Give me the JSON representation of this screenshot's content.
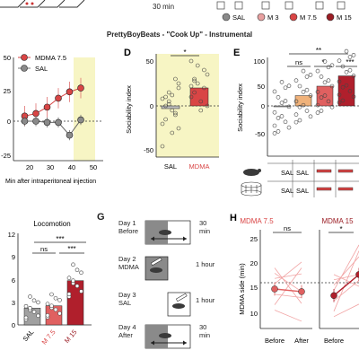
{
  "top": {
    "time_label": "30 min",
    "legend": [
      {
        "label": "SAL",
        "color": "#8a8a8a"
      },
      {
        "label": "M 3",
        "color": "#e8a0a0"
      },
      {
        "label": "M 7.5",
        "color": "#d94545"
      },
      {
        "label": "M 15",
        "color": "#9b1d24"
      }
    ]
  },
  "caption": "PrettyBoyBeats - \"Cook Up\" - Instrumental",
  "panels": {
    "C": {
      "legend": [
        "MDMA 7.5",
        "SAL"
      ],
      "xlabel": "Min after intraperitoneal injection",
      "yticks": [
        "50",
        "25",
        "0",
        "-25"
      ],
      "xticks": [
        "20",
        "30",
        "40",
        "50"
      ]
    },
    "D": {
      "letter": "D",
      "ylabel": "Sociability index",
      "xticks": [
        "SAL",
        "MDMA"
      ],
      "yticks": [
        "50",
        "0",
        "-50"
      ],
      "sig": "*"
    },
    "E": {
      "letter": "E",
      "ylabel": "Sociability index",
      "yticks": [
        "100",
        "50",
        "0",
        "-50"
      ],
      "sig_top": "**",
      "sig_ns": "ns",
      "sig_mid": "*",
      "sig_right": "***",
      "row1": [
        "SAL",
        "SAL",
        "",
        ""
      ],
      "row2": [
        "SAL",
        "SAL",
        "",
        ""
      ]
    },
    "F": {
      "title": "Locomotion",
      "yticks": [
        "12",
        "9",
        "6",
        "3",
        "0"
      ],
      "xticks": [
        "SAL",
        "M 7.5",
        "M 15"
      ],
      "sig_top": "***",
      "sig_ns": "ns",
      "sig_right": "***"
    },
    "G": {
      "letter": "G",
      "steps": [
        {
          "label": "Day 1\nBefore",
          "time": "30\nmin"
        },
        {
          "label": "Day 2\nMDMA",
          "time": "1 hour"
        },
        {
          "label": "Day 3\nSAL",
          "time": "1 hour"
        },
        {
          "label": "Day 4\nAfter",
          "time": "30\nmin"
        }
      ]
    },
    "H": {
      "letter": "H",
      "ylabel": "MDMA side (min)",
      "left_title": "MDMA 7.5",
      "right_title": "MDMA 15",
      "yticks": [
        "25",
        "20",
        "15",
        "10"
      ],
      "xticks": [
        "Before",
        "After"
      ],
      "left_sig": "ns",
      "right_sig": "*"
    }
  },
  "chart_data": [
    {
      "type": "line",
      "panel": "C",
      "x": [
        20,
        25,
        30,
        35,
        40,
        45
      ],
      "series": [
        {
          "name": "MDMA 7.5",
          "values": [
            4,
            6,
            11,
            18,
            23,
            26
          ]
        },
        {
          "name": "SAL",
          "values": [
            0,
            0,
            -1,
            -1,
            -11,
            1
          ]
        }
      ],
      "xlabel": "Min after intraperitoneal injection",
      "ylim": [
        -25,
        50
      ]
    },
    {
      "type": "bar",
      "panel": "D",
      "categories": [
        "SAL",
        "MDMA"
      ],
      "values": [
        -3,
        20
      ],
      "ylabel": "Sociability index",
      "ylim": [
        -60,
        60
      ]
    },
    {
      "type": "bar",
      "panel": "E",
      "categories": [
        "SAL",
        "M 3",
        "M 7.5",
        "M 15"
      ],
      "values": [
        -1,
        13,
        25,
        38
      ],
      "ylabel": "Sociability index",
      "ylim": [
        -75,
        100
      ]
    },
    {
      "type": "bar",
      "panel": "F",
      "title": "Locomotion",
      "categories": [
        "SAL",
        "M 7.5",
        "M 15"
      ],
      "values": [
        2.2,
        2.5,
        5.8
      ],
      "ylim": [
        0,
        12
      ]
    },
    {
      "type": "line",
      "panel": "H",
      "categories": [
        "Before",
        "After"
      ],
      "series": [
        {
          "name": "MDMA 7.5",
          "values": [
            16,
            15.6
          ]
        },
        {
          "name": "MDMA 15",
          "values": [
            15,
            18.2
          ]
        }
      ],
      "ylabel": "MDMA side (min)",
      "ylim": [
        10,
        25
      ]
    }
  ]
}
